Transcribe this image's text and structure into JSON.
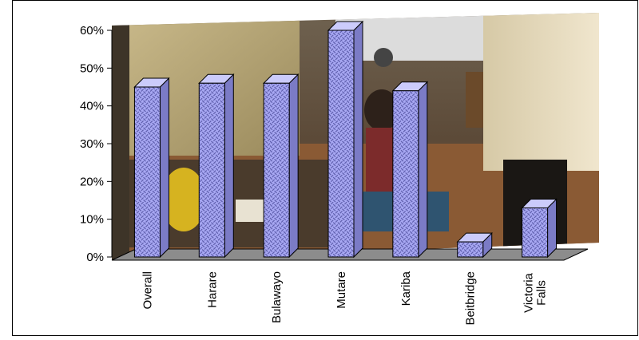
{
  "chart_data": {
    "type": "bar",
    "style": "3d-column",
    "categories": [
      "Overall",
      "Harare",
      "Bulawayo",
      "Mutare",
      "Kariba",
      "Beitbridge",
      "Victoria Falls"
    ],
    "category_label_lines": [
      [
        "Overall"
      ],
      [
        "Harare"
      ],
      [
        "Bulawayo"
      ],
      [
        "Mutare"
      ],
      [
        "Kariba"
      ],
      [
        "Beitbridge"
      ],
      [
        "Victoria",
        "Falls"
      ]
    ],
    "values": [
      45,
      46,
      46,
      60,
      44,
      4,
      13
    ],
    "ylim": [
      0,
      60
    ],
    "y_ticks": [
      0,
      10,
      20,
      30,
      40,
      50,
      60
    ],
    "y_tick_labels": [
      "0%",
      "10%",
      "20%",
      "30%",
      "40%",
      "50%",
      "60%"
    ],
    "grid": false,
    "legend": "none",
    "title": "",
    "xlabel": "",
    "ylabel": "",
    "colors": {
      "bar_front": "#a9a9f4",
      "bar_pattern": "#5a5aa8",
      "bar_top": "#cbcbfb",
      "bar_side": "#7b7bc6",
      "bar_outline": "#000000",
      "floor": "#8c8c8c",
      "frame": "#000000"
    },
    "background": "photo of a street market scene"
  }
}
